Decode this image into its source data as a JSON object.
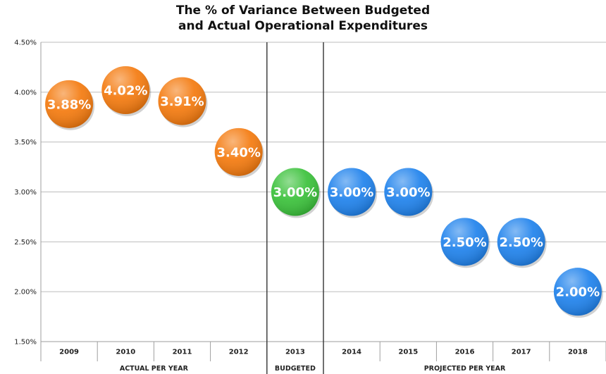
{
  "chart_data": {
    "type": "scatter",
    "title_line1": "The % of Variance Between Budgeted",
    "title_line2": "and Actual Operational Expenditures",
    "ylim": [
      1.5,
      4.5
    ],
    "yticks": [
      "1.50%",
      "2.00%",
      "2.50%",
      "3.00%",
      "3.50%",
      "4.00%",
      "4.50%"
    ],
    "grid": "horizontal",
    "categories": [
      "2009",
      "2010",
      "2011",
      "2012",
      "2013",
      "2014",
      "2015",
      "2016",
      "2017",
      "2018"
    ],
    "groups": [
      {
        "label": "ACTUAL PER YEAR",
        "start": 0,
        "end": 3,
        "color": "#f47a0e"
      },
      {
        "label": "BUDGETED",
        "start": 4,
        "end": 4,
        "color": "#3ac13a"
      },
      {
        "label": "PROJECTED PER YEAR",
        "start": 5,
        "end": 9,
        "color": "#1f82ec"
      }
    ],
    "values": [
      3.88,
      4.02,
      3.91,
      3.4,
      3.0,
      3.0,
      3.0,
      2.5,
      2.5,
      2.0
    ],
    "labels": [
      "3.88%",
      "4.02%",
      "3.91%",
      "3.40%",
      "3.00%",
      "3.00%",
      "3.00%",
      "2.50%",
      "2.50%",
      "2.00%"
    ]
  }
}
